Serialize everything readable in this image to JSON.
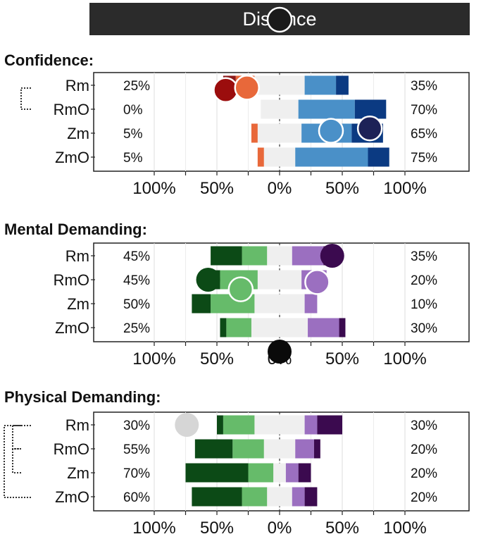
{
  "header": {
    "title": "Distance"
  },
  "chart_data": [
    {
      "type": "bar",
      "title": "Confidence:",
      "categories": [
        "Rm",
        "RmO",
        "Zm",
        "ZmO"
      ],
      "left_pct_labels": [
        "25%",
        "0%",
        "5%",
        "5%"
      ],
      "right_pct_labels": [
        "35%",
        "70%",
        "65%",
        "75%"
      ],
      "xlim": [
        -100,
        100
      ],
      "xticks": [
        "100%",
        "50%",
        "0%",
        "50%",
        "100%"
      ],
      "series": [
        {
          "color": "#8b1a1a",
          "values": [
            -10,
            0,
            0,
            0
          ]
        },
        {
          "color": "#e8683a",
          "values": [
            -15,
            0,
            -5,
            -5
          ]
        },
        {
          "color": "#efefef",
          "values": [
            40,
            30,
            35,
            25
          ]
        },
        {
          "color": "#4a90c8",
          "values": [
            25,
            45,
            40,
            58
          ]
        },
        {
          "color": "#0b3a82",
          "values": [
            10,
            25,
            25,
            17
          ]
        }
      ]
    },
    {
      "type": "bar",
      "title": "Mental Demanding:",
      "categories": [
        "Rm",
        "RmO",
        "Zm",
        "ZmO"
      ],
      "left_pct_labels": [
        "45%",
        "45%",
        "50%",
        "25%"
      ],
      "right_pct_labels": [
        "35%",
        "20%",
        "10%",
        "30%"
      ],
      "xlim": [
        -100,
        100
      ],
      "xticks": [
        "100%",
        "50%",
        "0%",
        "50%",
        "100%"
      ],
      "series": [
        {
          "color": "#0c4a16",
          "values": [
            -25,
            -15,
            -15,
            -5
          ]
        },
        {
          "color": "#66bb6a",
          "values": [
            -20,
            -30,
            -35,
            -20
          ]
        },
        {
          "color": "#efefef",
          "values": [
            20,
            35,
            40,
            45
          ]
        },
        {
          "color": "#9b6fc0",
          "values": [
            25,
            20,
            10,
            25
          ]
        },
        {
          "color": "#3b0a4f",
          "values": [
            10,
            0,
            0,
            5
          ]
        }
      ]
    },
    {
      "type": "bar",
      "title": "Physical Demanding:",
      "categories": [
        "Rm",
        "RmO",
        "Zm",
        "ZmO"
      ],
      "left_pct_labels": [
        "30%",
        "55%",
        "70%",
        "60%"
      ],
      "right_pct_labels": [
        "30%",
        "20%",
        "20%",
        "20%"
      ],
      "xlim": [
        -100,
        100
      ],
      "xticks": [
        "100%",
        "50%",
        "0%",
        "50%",
        "100%"
      ],
      "series": [
        {
          "color": "#0c4a16",
          "values": [
            -5,
            -30,
            -50,
            -40
          ]
        },
        {
          "color": "#66bb6a",
          "values": [
            -25,
            -25,
            -20,
            -20
          ]
        },
        {
          "color": "#efefef",
          "values": [
            40,
            25,
            10,
            20
          ]
        },
        {
          "color": "#9b6fc0",
          "values": [
            10,
            15,
            10,
            10
          ]
        },
        {
          "color": "#3b0a4f",
          "values": [
            20,
            5,
            10,
            10
          ]
        }
      ]
    }
  ],
  "markers": [
    {
      "panel": 0,
      "x": -43,
      "row": 0.2,
      "color": "#9b0d0d",
      "outlined": true
    },
    {
      "panel": 0,
      "x": -26,
      "row": 0.1,
      "color": "#e8683a",
      "outlined": true
    },
    {
      "panel": 0,
      "x": 41,
      "row": 1.9,
      "color": "#4a90c8",
      "outlined": true
    },
    {
      "panel": 0,
      "x": 72,
      "row": 1.8,
      "color": "#1d2257",
      "outlined": true
    },
    {
      "panel": 1,
      "x": 42,
      "row": 0.0,
      "color": "#3b0a4f",
      "outlined": false
    },
    {
      "panel": 1,
      "x": -57,
      "row": 1.0,
      "color": "#0c4a16",
      "outlined": false
    },
    {
      "panel": 1,
      "x": 30,
      "row": 1.1,
      "color": "#9b6fc0",
      "outlined": true
    },
    {
      "panel": 1,
      "x": -31,
      "row": 1.4,
      "color": "#66bb6a",
      "outlined": true
    },
    {
      "panel": 1,
      "x": 0,
      "row": 4.0,
      "color": "#0a0a0a",
      "outlined": false
    },
    {
      "panel": 2,
      "x": -74,
      "row": 0.0,
      "color": "#d6d6d6",
      "outlined": false
    },
    {
      "panel": 99,
      "x": 0,
      "row": 0,
      "color": "#1a1a1a",
      "outlined": true
    }
  ]
}
